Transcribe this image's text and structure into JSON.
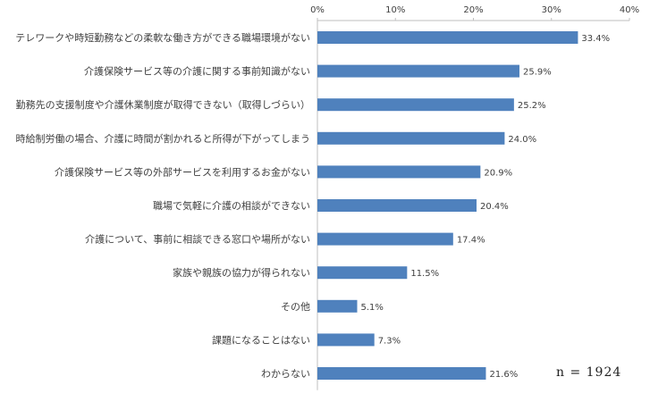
{
  "chart_data": {
    "type": "bar",
    "orientation": "horizontal",
    "categories": [
      "テレワークや時短勤務などの柔軟な働き方ができる職場環境がない",
      "介護保険サービス等の介護に関する事前知識がない",
      "勤務先の支援制度や介護休業制度が取得できない（取得しづらい）",
      "時給制労働の場合、介護に時間が割かれると所得が下がってしまう",
      "介護保険サービス等の外部サービスを利用するお金がない",
      "職場で気軽に介護の相談ができない",
      "介護について、事前に相談できる窓口や場所がない",
      "家族や親族の協力が得られない",
      "その他",
      "課題になることはない",
      "わからない"
    ],
    "values": [
      33.4,
      25.9,
      25.2,
      24.0,
      20.9,
      20.4,
      17.4,
      11.5,
      5.1,
      7.3,
      21.6
    ],
    "value_labels": [
      "33.4%",
      "25.9%",
      "25.2%",
      "24.0%",
      "20.9%",
      "20.4%",
      "17.4%",
      "11.5%",
      "5.1%",
      "7.3%",
      "21.6%"
    ],
    "x_ticks": [
      0,
      10,
      20,
      30,
      40
    ],
    "x_tick_labels": [
      "0%",
      "10%",
      "20%",
      "30%",
      "40%"
    ],
    "xlim": [
      0,
      40
    ],
    "axis_position": "top",
    "grid": false,
    "legend": false,
    "bar_color": "#4f81bd",
    "note": "n = 1924"
  }
}
